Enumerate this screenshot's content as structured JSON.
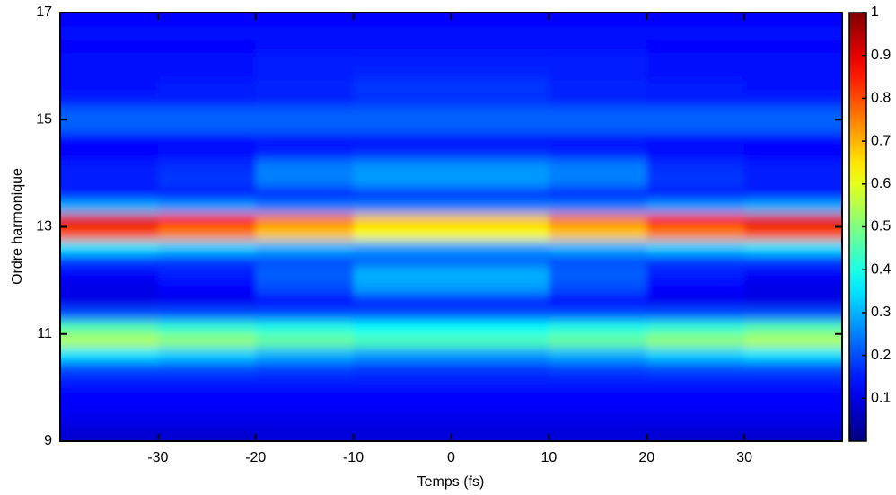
{
  "chart_data": {
    "type": "heatmap",
    "colormap": "jet",
    "xlabel": "Temps (fs)",
    "ylabel": "Ordre harmonique",
    "xlim": [
      -40,
      40
    ],
    "xticks": [
      -30,
      -20,
      -10,
      0,
      10,
      20,
      30
    ],
    "ylim": [
      9,
      17
    ],
    "yticks": [
      9,
      11,
      13,
      15,
      17
    ],
    "zlim": [
      0,
      1
    ],
    "zticks": [
      0.1,
      0.2,
      0.3,
      0.4,
      0.5,
      0.6,
      0.7,
      0.8,
      0.9,
      1
    ],
    "x": [
      -35,
      -25,
      -15,
      -5,
      5,
      15,
      25,
      35
    ],
    "y": [
      9.125,
      9.375,
      9.625,
      9.875,
      10.125,
      10.375,
      10.625,
      10.875,
      11.125,
      11.375,
      11.625,
      11.875,
      12.125,
      12.375,
      12.625,
      12.875,
      13.125,
      13.375,
      13.625,
      13.875,
      14.125,
      14.375,
      14.625,
      14.875,
      15.125,
      15.375,
      15.625,
      15.875,
      16.125,
      16.375,
      16.625,
      16.875
    ],
    "values": [
      [
        0.08,
        0.08,
        0.09,
        0.09,
        0.09,
        0.09,
        0.08,
        0.08
      ],
      [
        0.1,
        0.1,
        0.1,
        0.1,
        0.1,
        0.1,
        0.1,
        0.1
      ],
      [
        0.12,
        0.12,
        0.12,
        0.12,
        0.12,
        0.12,
        0.12,
        0.12
      ],
      [
        0.13,
        0.13,
        0.13,
        0.13,
        0.13,
        0.13,
        0.13,
        0.13
      ],
      [
        0.15,
        0.15,
        0.15,
        0.15,
        0.15,
        0.15,
        0.15,
        0.15
      ],
      [
        0.2,
        0.2,
        0.19,
        0.18,
        0.18,
        0.19,
        0.2,
        0.2
      ],
      [
        0.35,
        0.33,
        0.3,
        0.28,
        0.28,
        0.3,
        0.33,
        0.35
      ],
      [
        0.55,
        0.52,
        0.48,
        0.45,
        0.45,
        0.48,
        0.52,
        0.55
      ],
      [
        0.45,
        0.42,
        0.4,
        0.38,
        0.38,
        0.4,
        0.42,
        0.45
      ],
      [
        0.2,
        0.2,
        0.2,
        0.2,
        0.2,
        0.2,
        0.2,
        0.2
      ],
      [
        0.1,
        0.11,
        0.13,
        0.15,
        0.15,
        0.13,
        0.11,
        0.1
      ],
      [
        0.1,
        0.13,
        0.2,
        0.28,
        0.28,
        0.2,
        0.13,
        0.1
      ],
      [
        0.12,
        0.15,
        0.22,
        0.3,
        0.3,
        0.22,
        0.15,
        0.12
      ],
      [
        0.18,
        0.18,
        0.2,
        0.22,
        0.22,
        0.2,
        0.18,
        0.18
      ],
      [
        0.35,
        0.33,
        0.3,
        0.28,
        0.28,
        0.3,
        0.33,
        0.35
      ],
      [
        0.8,
        0.75,
        0.68,
        0.62,
        0.62,
        0.68,
        0.75,
        0.8
      ],
      [
        0.9,
        0.85,
        0.75,
        0.68,
        0.68,
        0.75,
        0.85,
        0.9
      ],
      [
        0.3,
        0.28,
        0.25,
        0.25,
        0.25,
        0.25,
        0.28,
        0.3
      ],
      [
        0.15,
        0.15,
        0.15,
        0.17,
        0.17,
        0.15,
        0.15,
        0.15
      ],
      [
        0.15,
        0.18,
        0.25,
        0.28,
        0.28,
        0.25,
        0.18,
        0.15
      ],
      [
        0.15,
        0.17,
        0.25,
        0.27,
        0.27,
        0.25,
        0.17,
        0.15
      ],
      [
        0.13,
        0.14,
        0.16,
        0.17,
        0.17,
        0.16,
        0.14,
        0.13
      ],
      [
        0.13,
        0.13,
        0.14,
        0.14,
        0.14,
        0.14,
        0.13,
        0.13
      ],
      [
        0.22,
        0.22,
        0.22,
        0.22,
        0.22,
        0.22,
        0.22,
        0.22
      ],
      [
        0.22,
        0.22,
        0.22,
        0.22,
        0.22,
        0.22,
        0.22,
        0.22
      ],
      [
        0.15,
        0.15,
        0.16,
        0.17,
        0.17,
        0.16,
        0.15,
        0.15
      ],
      [
        0.14,
        0.15,
        0.16,
        0.18,
        0.18,
        0.16,
        0.15,
        0.14
      ],
      [
        0.14,
        0.14,
        0.15,
        0.16,
        0.16,
        0.15,
        0.14,
        0.14
      ],
      [
        0.14,
        0.14,
        0.15,
        0.15,
        0.15,
        0.15,
        0.14,
        0.14
      ],
      [
        0.13,
        0.13,
        0.14,
        0.14,
        0.14,
        0.14,
        0.13,
        0.13
      ],
      [
        0.14,
        0.14,
        0.14,
        0.14,
        0.14,
        0.14,
        0.14,
        0.14
      ],
      [
        0.13,
        0.13,
        0.13,
        0.13,
        0.13,
        0.13,
        0.13,
        0.13
      ]
    ]
  }
}
